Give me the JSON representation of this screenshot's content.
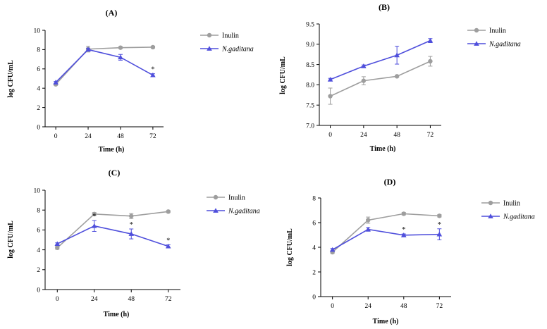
{
  "chart_data": [
    {
      "type": "line",
      "title": "(A)",
      "xlabel": "Time (h)",
      "ylabel": "log CFU/mL",
      "x": [
        0,
        24,
        48,
        72
      ],
      "xticks": [
        "0",
        "24",
        "48",
        "72"
      ],
      "ylim": [
        0,
        10
      ],
      "yticks": [
        "0",
        "2",
        "4",
        "6",
        "8",
        "10"
      ],
      "series": [
        {
          "name": "Inulin",
          "values": [
            4.4,
            8.05,
            8.2,
            8.25
          ],
          "errors": [
            0.1,
            0.3,
            0.1,
            0.1
          ]
        },
        {
          "name": "N.gaditana",
          "values": [
            4.6,
            8.0,
            7.2,
            5.35
          ],
          "errors": [
            0.1,
            0.15,
            0.3,
            0.15
          ]
        }
      ],
      "annotations": [
        {
          "series": 1,
          "index": 3,
          "text": "*"
        }
      ]
    },
    {
      "type": "line",
      "title": "(B)",
      "xlabel": "Time (h)",
      "ylabel": "log CFU/mL",
      "x": [
        0,
        24,
        48,
        72
      ],
      "xticks": [
        "0",
        "24",
        "48",
        "72"
      ],
      "ylim": [
        7.0,
        9.5
      ],
      "yticks": [
        "7.0",
        "7.5",
        "8.0",
        "8.5",
        "9.0",
        "9.5"
      ],
      "series": [
        {
          "name": "Inulin",
          "values": [
            7.72,
            8.1,
            8.21,
            8.58
          ],
          "errors": [
            0.2,
            0.1,
            0.02,
            0.12
          ]
        },
        {
          "name": "N.gaditana",
          "values": [
            8.13,
            8.46,
            8.73,
            9.09
          ],
          "errors": [
            0.03,
            0.03,
            0.22,
            0.05
          ]
        }
      ],
      "annotations": []
    },
    {
      "type": "line",
      "title": "(C)",
      "xlabel": "Time (h)",
      "ylabel": "log CFU/mL",
      "x": [
        0,
        24,
        48,
        72
      ],
      "xticks": [
        "0",
        "24",
        "48",
        "72"
      ],
      "ylim": [
        0,
        10
      ],
      "yticks": [
        "0",
        "2",
        "4",
        "6",
        "8",
        "10"
      ],
      "series": [
        {
          "name": "Inulin",
          "values": [
            4.2,
            7.6,
            7.4,
            7.85
          ],
          "errors": [
            0.15,
            0.15,
            0.25,
            0.1
          ]
        },
        {
          "name": "N.gaditana",
          "values": [
            4.6,
            6.4,
            5.6,
            4.35
          ],
          "errors": [
            0.1,
            0.55,
            0.5,
            0.15
          ]
        }
      ],
      "annotations": [
        {
          "series": 1,
          "index": 1,
          "text": "*"
        },
        {
          "series": 1,
          "index": 2,
          "text": "*"
        },
        {
          "series": 1,
          "index": 3,
          "text": "*"
        }
      ]
    },
    {
      "type": "line",
      "title": "(D)",
      "xlabel": "Time (h)",
      "ylabel": "log CFU/mL",
      "x": [
        0,
        24,
        48,
        72
      ],
      "xticks": [
        "0",
        "24",
        "48",
        "72"
      ],
      "ylim": [
        0,
        8
      ],
      "yticks": [
        "0",
        "2",
        "4",
        "6",
        "8"
      ],
      "series": [
        {
          "name": "Inulin",
          "values": [
            3.6,
            6.2,
            6.72,
            6.55
          ],
          "errors": [
            0.1,
            0.25,
            0.1,
            0.1
          ]
        },
        {
          "name": "N.gaditana",
          "values": [
            3.8,
            5.45,
            4.98,
            5.05
          ],
          "errors": [
            0.1,
            0.15,
            0.1,
            0.45
          ]
        }
      ],
      "annotations": [
        {
          "series": 1,
          "index": 2,
          "text": "*"
        },
        {
          "series": 1,
          "index": 3,
          "text": "*"
        }
      ]
    }
  ],
  "colors": {
    "inulin": "#9e9e9e",
    "ngaditana": "#4f4fdc",
    "axis": "#000000"
  }
}
